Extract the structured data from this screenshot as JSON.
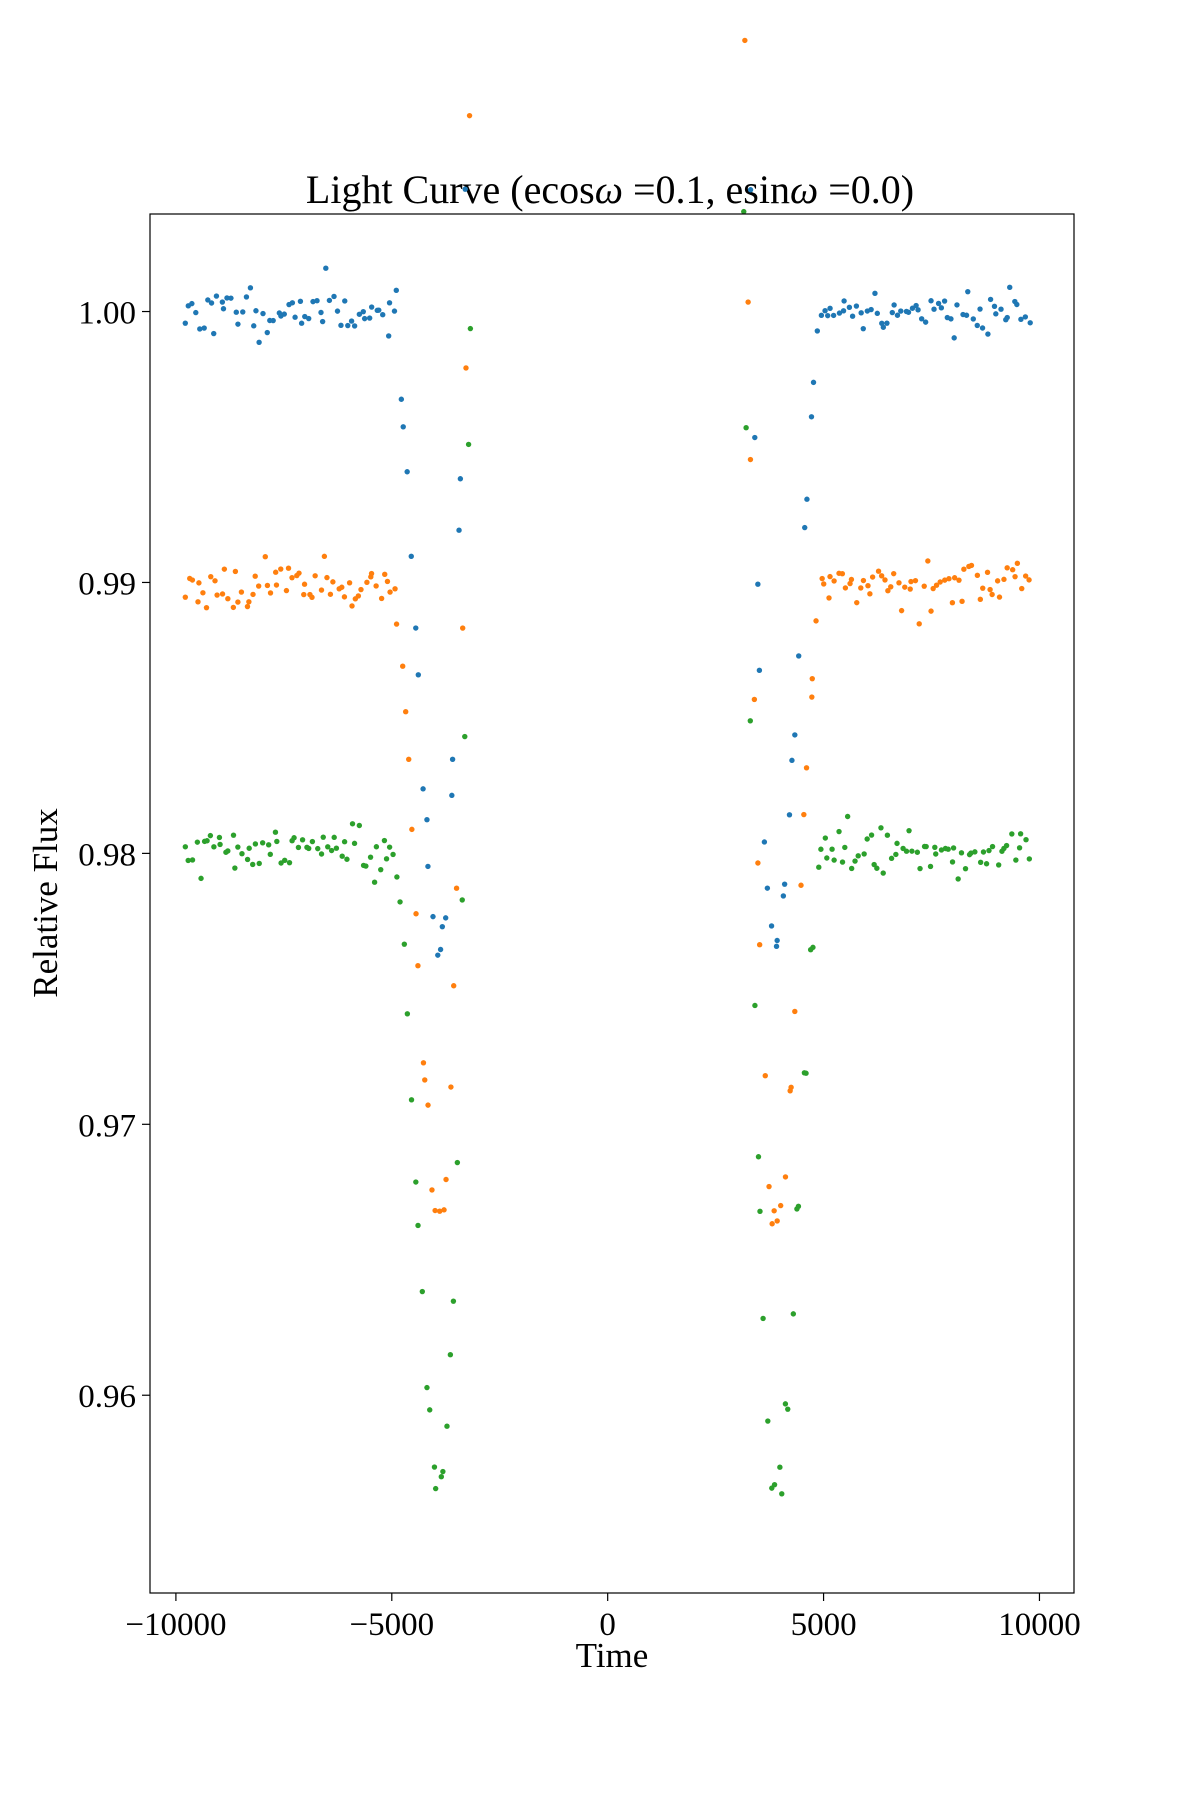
{
  "chart_data": {
    "type": "scatter",
    "title_prefix": "Light Curve (ecos",
    "title_mid": " =0.1, esin",
    "title_suffix": " =0.0)",
    "title_symbol": "ω",
    "xlabel": "Time",
    "ylabel": "Relative Flux",
    "xlim": [
      -10600,
      10800
    ],
    "ylim": [
      0.9527,
      1.0036
    ],
    "xticks": [
      -10000,
      -5000,
      0,
      5000,
      10000
    ],
    "xtick_labels": [
      "−10000",
      "−5000",
      "0",
      "5000",
      "10000"
    ],
    "yticks": [
      0.96,
      0.97,
      0.98,
      0.99,
      1.0
    ],
    "ytick_labels": [
      "0.96",
      "0.97",
      "0.98",
      "0.99",
      "1.00"
    ],
    "grid": false,
    "legend": false,
    "series": [
      {
        "color": "#1f77b4",
        "baseline": 1.0,
        "depth": 0.0235,
        "noise": 0.00045,
        "seed": 11
      },
      {
        "color": "#ff7f0e",
        "baseline": 0.99,
        "depth": 0.0235,
        "noise": 0.00042,
        "seed": 23
      },
      {
        "color": "#2ca02c",
        "baseline": 0.98,
        "depth": 0.0235,
        "noise": 0.00045,
        "seed": 37
      }
    ],
    "time_range": [
      -9800,
      9800
    ],
    "points_per_series": 240,
    "ingress_time": [
      -5000,
      -3900
    ],
    "egress_time": [
      3900,
      5000
    ],
    "limb_darkening_extra": 0.0009
  }
}
